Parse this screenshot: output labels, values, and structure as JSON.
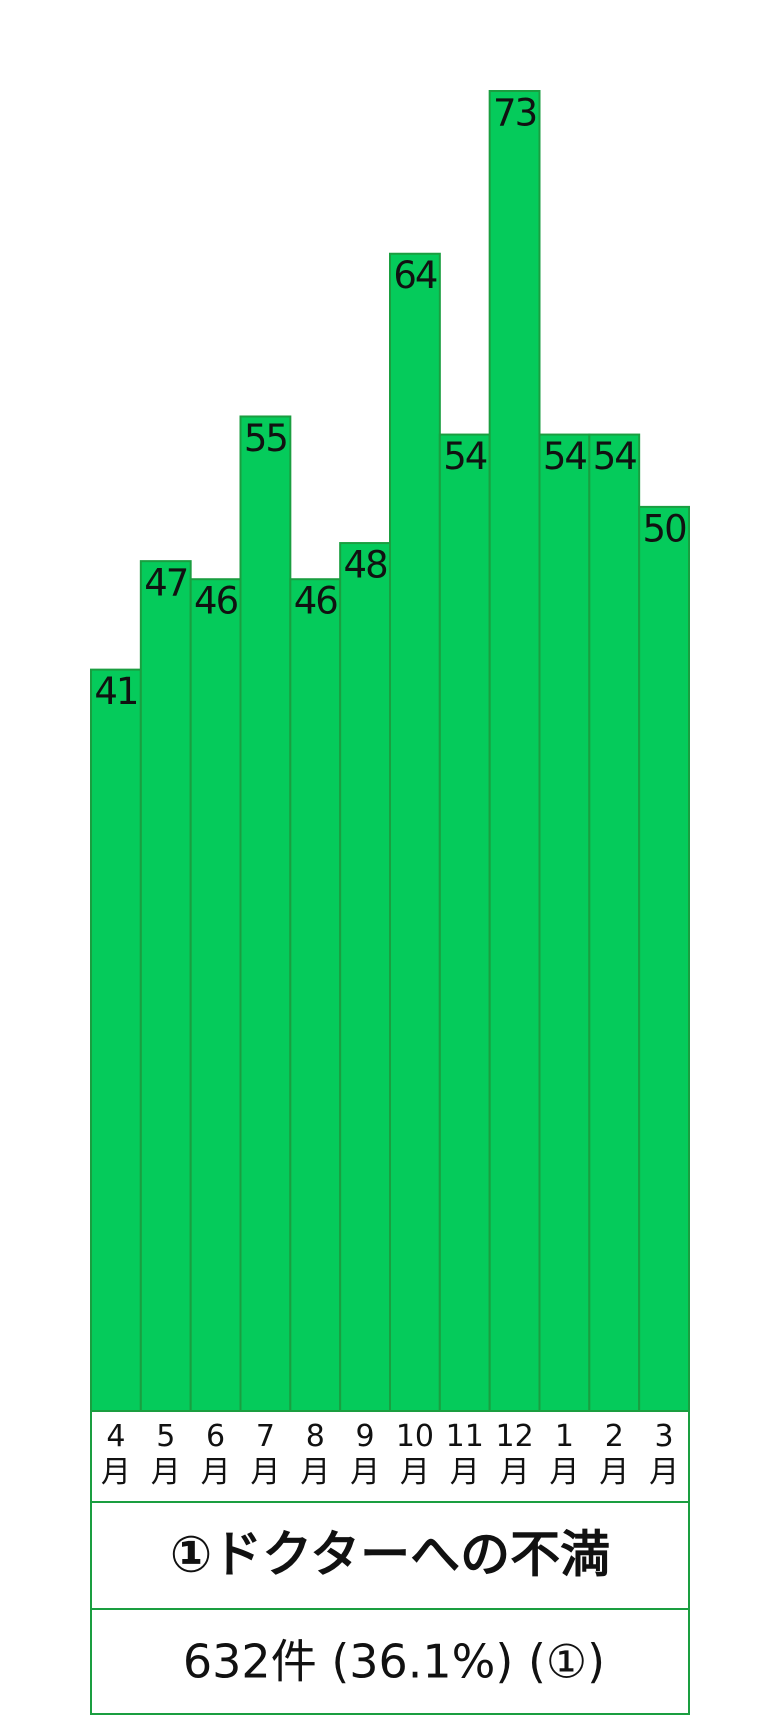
{
  "chart_data": {
    "type": "bar",
    "title": "①ドクターへの不満",
    "subtitle": "632件 (36.1%) (①)",
    "categories": [
      "4月",
      "5月",
      "6月",
      "7月",
      "8月",
      "9月",
      "10月",
      "11月",
      "12月",
      "1月",
      "2月",
      "3月"
    ],
    "values": [
      41,
      47,
      46,
      55,
      46,
      48,
      64,
      54,
      73,
      54,
      54,
      50
    ],
    "color": "#05cb5b"
  }
}
